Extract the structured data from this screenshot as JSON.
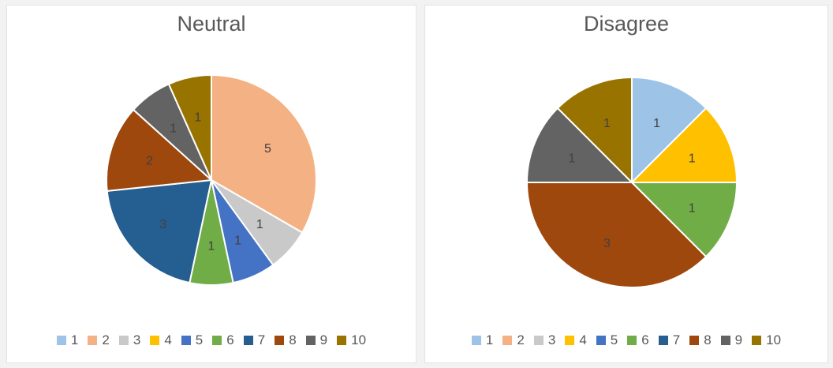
{
  "chart_data": [
    {
      "type": "pie",
      "title": "Neutral",
      "categories": [
        "1",
        "2",
        "3",
        "4",
        "5",
        "6",
        "7",
        "8",
        "9",
        "10"
      ],
      "values": [
        0,
        5,
        1,
        0,
        1,
        1,
        3,
        2,
        1,
        1
      ],
      "legend_position": "bottom",
      "data_labels": true
    },
    {
      "type": "pie",
      "title": "Disagree",
      "categories": [
        "1",
        "2",
        "3",
        "4",
        "5",
        "6",
        "7",
        "8",
        "9",
        "10"
      ],
      "values": [
        1,
        0,
        0,
        1,
        0,
        1,
        0,
        3,
        1,
        1
      ],
      "legend_position": "bottom",
      "data_labels": true
    }
  ],
  "colors": [
    "#9DC3E6",
    "#F4B183",
    "#C9C9C9",
    "#FFC000",
    "#4472C4",
    "#70AD47",
    "#255E91",
    "#9E480E",
    "#636363",
    "#997300"
  ],
  "legend": {
    "items": [
      "1",
      "2",
      "3",
      "4",
      "5",
      "6",
      "7",
      "8",
      "9",
      "10"
    ]
  }
}
